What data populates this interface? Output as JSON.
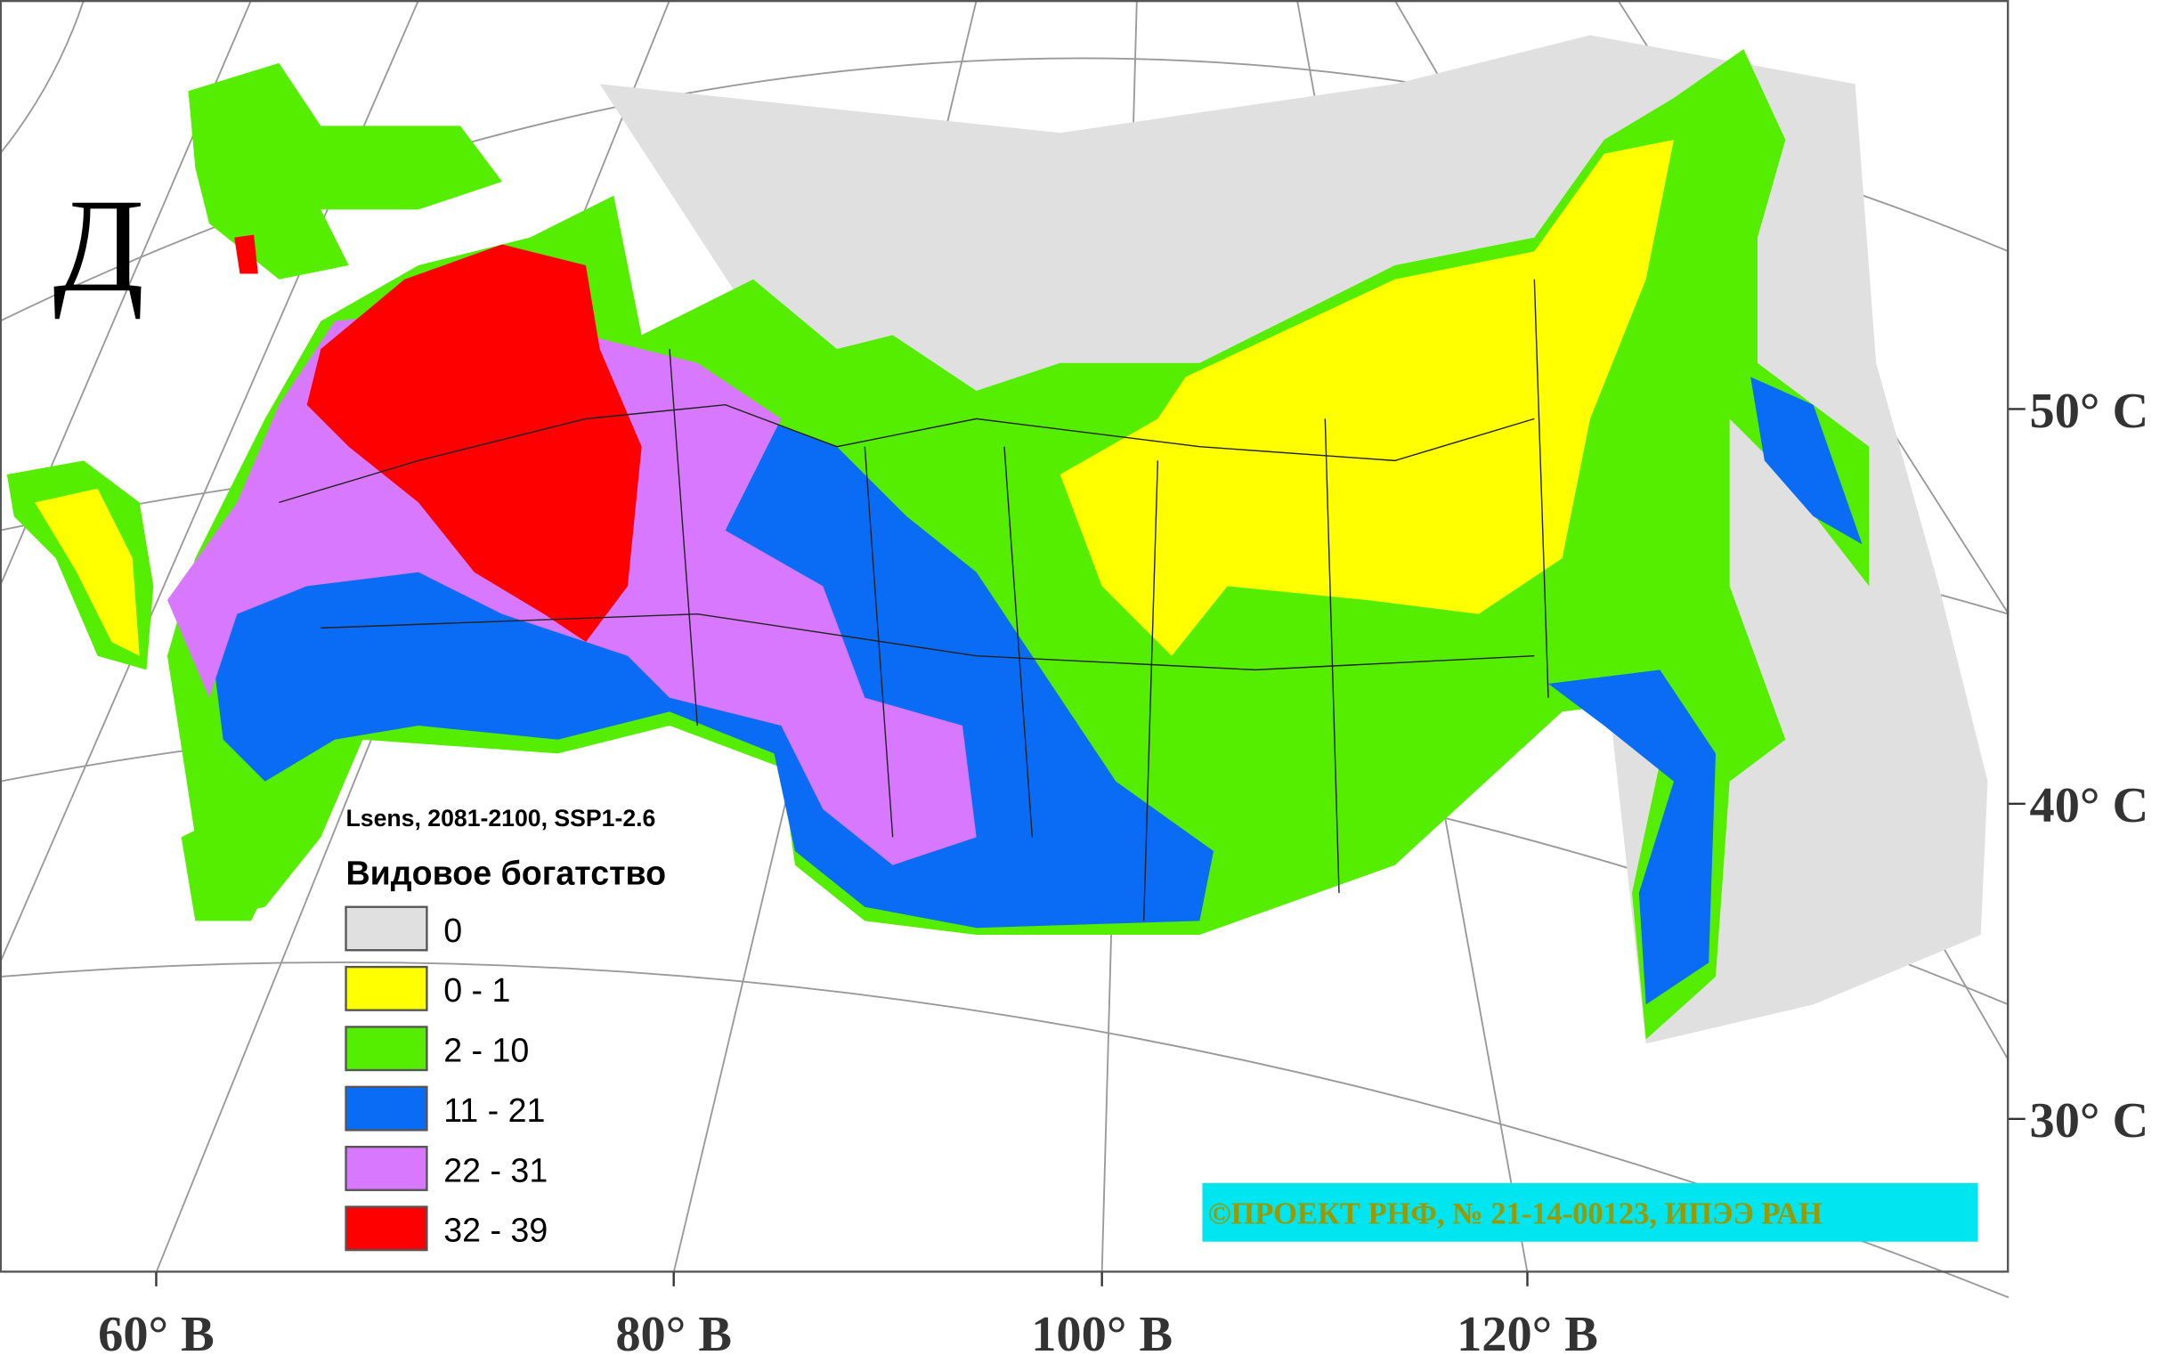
{
  "panel_letter": "Д",
  "subtitle": "Lsens, 2081-2100, SSP1-2.6",
  "legend": {
    "title": "Видовое богатство",
    "items": [
      {
        "label": "0",
        "color": "#e0e0e0"
      },
      {
        "label": "0 - 1",
        "color": "#ffff00"
      },
      {
        "label": "2 - 10",
        "color": "#55ee00"
      },
      {
        "label": "11 - 21",
        "color": "#0a6cf5"
      },
      {
        "label": "22 - 31",
        "color": "#d878ff"
      },
      {
        "label": "32 - 39",
        "color": "#ff0000"
      }
    ]
  },
  "longitude_labels": [
    "60° В",
    "80° В",
    "100° В",
    "120° В"
  ],
  "latitude_labels": [
    "50° С",
    "40° С",
    "30° С"
  ],
  "credit": "©ПРОЕКТ РНФ, № 21-14-00123, ИПЭЭ РАН"
}
